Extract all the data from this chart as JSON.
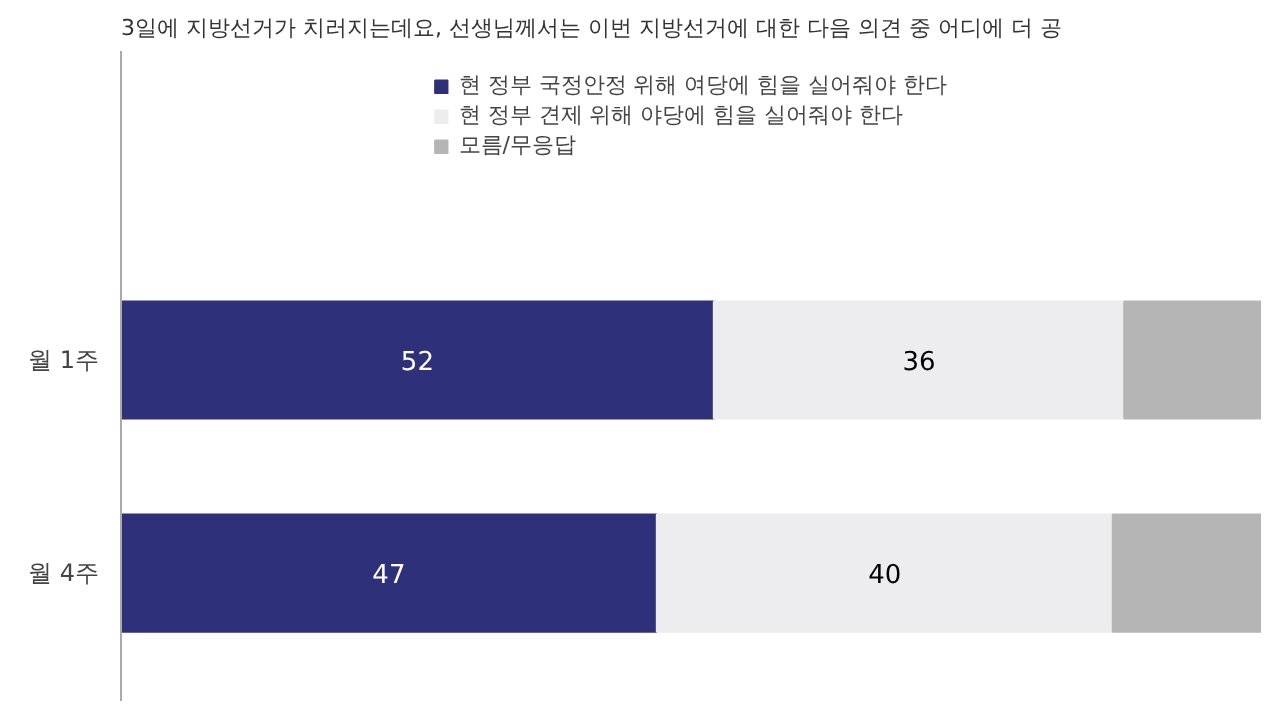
{
  "chart_data": {
    "type": "bar",
    "orientation": "horizontal",
    "stacked": true,
    "xlim": [
      0,
      100
    ],
    "tick_labels": "y",
    "title": "3일에 지방선거가 치러지는데요, 선생님께서는 이번 지방선거에 대한 다음 의견 중 어디에 더 공",
    "categories": [
      "월 1주",
      "월 4주"
    ],
    "series": [
      {
        "name": "현 정부 국정안정 위해 여당에 힘을 실어줘야 한다",
        "color": "#2e3079",
        "values": [
          52,
          47
        ],
        "value_labels": [
          "52",
          "47"
        ]
      },
      {
        "name": "현 정부 견제 위해 야당에 힘을 실어줘야 한다",
        "color": "#ededf0",
        "values": [
          36,
          40
        ],
        "value_labels": [
          "36",
          "40"
        ]
      },
      {
        "name": "모름/무응답",
        "color": "#b5b5b5",
        "values": [
          12,
          13
        ],
        "value_labels": [
          null,
          null
        ]
      }
    ],
    "legend": "top",
    "grid": false
  }
}
